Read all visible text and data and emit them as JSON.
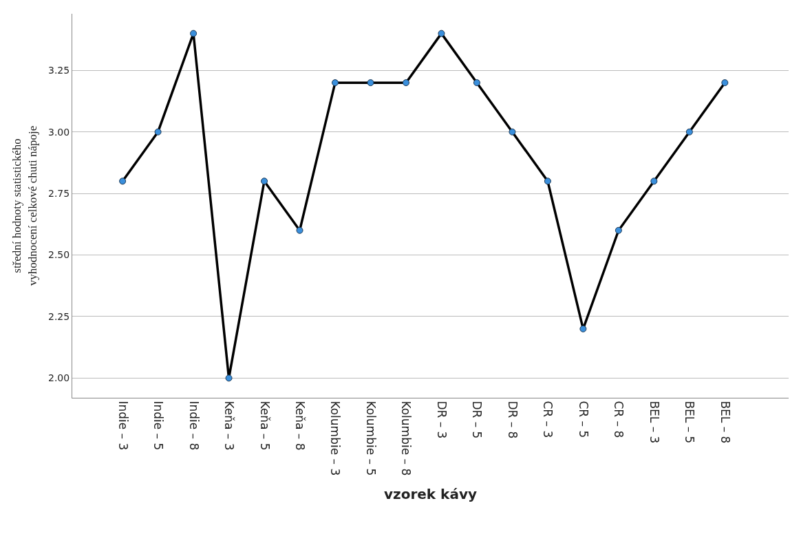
{
  "chart_data": {
    "type": "line",
    "xlabel": "vzorek kávy",
    "ylabel": "střední hodnoty statistického\nvyhodnocení celkové chuti nápoje",
    "categories": [
      "Indie – 3",
      "Indie – 5",
      "Indie – 8",
      "Keňa – 3",
      "Keňa – 5",
      "Keňa – 8",
      "Kolumbie – 3",
      "Kolumbie – 5",
      "Kolumbie – 8",
      "DR – 3",
      "DR – 5",
      "DR – 8",
      "CR – 3",
      "CR – 5",
      "CR – 8",
      "BEL – 3",
      "BEL – 5",
      "BEL – 8"
    ],
    "series": [
      {
        "color": "#000000",
        "values": [
          2.8,
          3.0,
          3.4,
          2.0,
          2.8,
          2.6,
          3.2,
          3.2,
          3.2,
          3.4,
          3.2,
          3.0,
          2.8,
          2.2,
          2.6,
          2.8,
          3.0,
          3.2
        ]
      }
    ],
    "ylim": [
      1.92,
      3.48
    ],
    "yticks": [
      {
        "value": 2.0,
        "label": "2.00"
      },
      {
        "value": 2.25,
        "label": "2.25"
      },
      {
        "value": 2.5,
        "label": "2.50"
      },
      {
        "value": 2.75,
        "label": "2.75"
      },
      {
        "value": 3.0,
        "label": "3.00"
      },
      {
        "value": 3.25,
        "label": "3.25"
      }
    ],
    "grid": "y",
    "legend": false,
    "marker": "circle",
    "line_style": "solid"
  }
}
